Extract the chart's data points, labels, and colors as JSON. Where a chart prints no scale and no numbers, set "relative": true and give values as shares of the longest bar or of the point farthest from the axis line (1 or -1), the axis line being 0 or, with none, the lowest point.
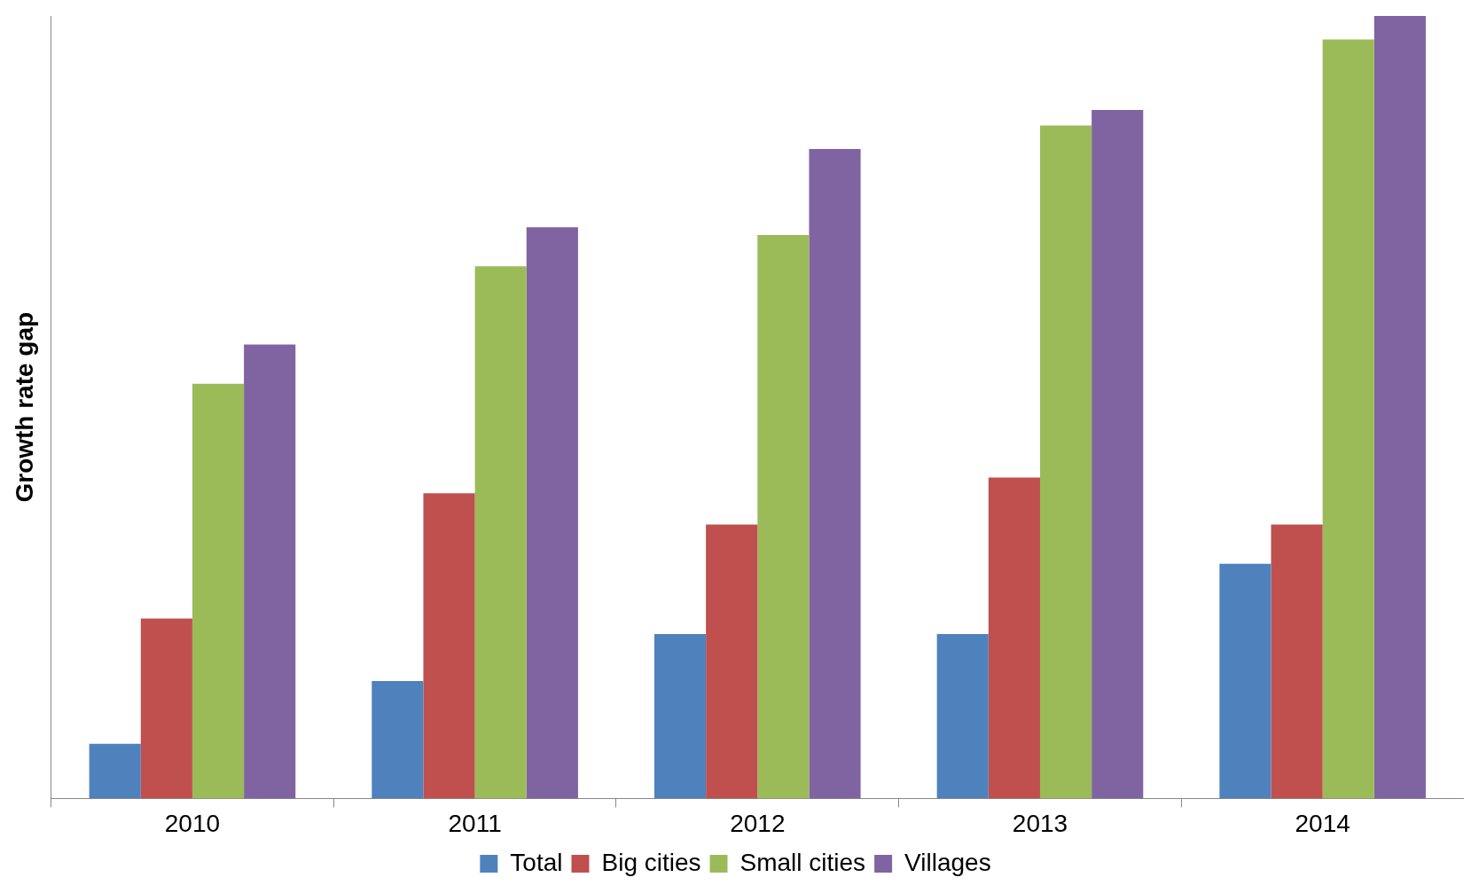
{
  "chart_data": {
    "type": "bar",
    "ylabel": "Growth rate gap",
    "relative": true,
    "categories": [
      "2010",
      "2011",
      "2012",
      "2013",
      "2014"
    ],
    "series": [
      {
        "name": "Total",
        "color": "#4f81bd",
        "values": [
          0.07,
          0.15,
          0.21,
          0.21,
          0.3
        ]
      },
      {
        "name": "Big cities",
        "color": "#c0504d",
        "values": [
          0.23,
          0.39,
          0.35,
          0.41,
          0.35
        ]
      },
      {
        "name": "Small cities",
        "color": "#9bbb59",
        "values": [
          0.53,
          0.68,
          0.72,
          0.86,
          0.97
        ]
      },
      {
        "name": "Villages",
        "color": "#8064a2",
        "values": [
          0.58,
          0.73,
          0.83,
          0.88,
          1
        ]
      }
    ],
    "legend": "bottom"
  }
}
